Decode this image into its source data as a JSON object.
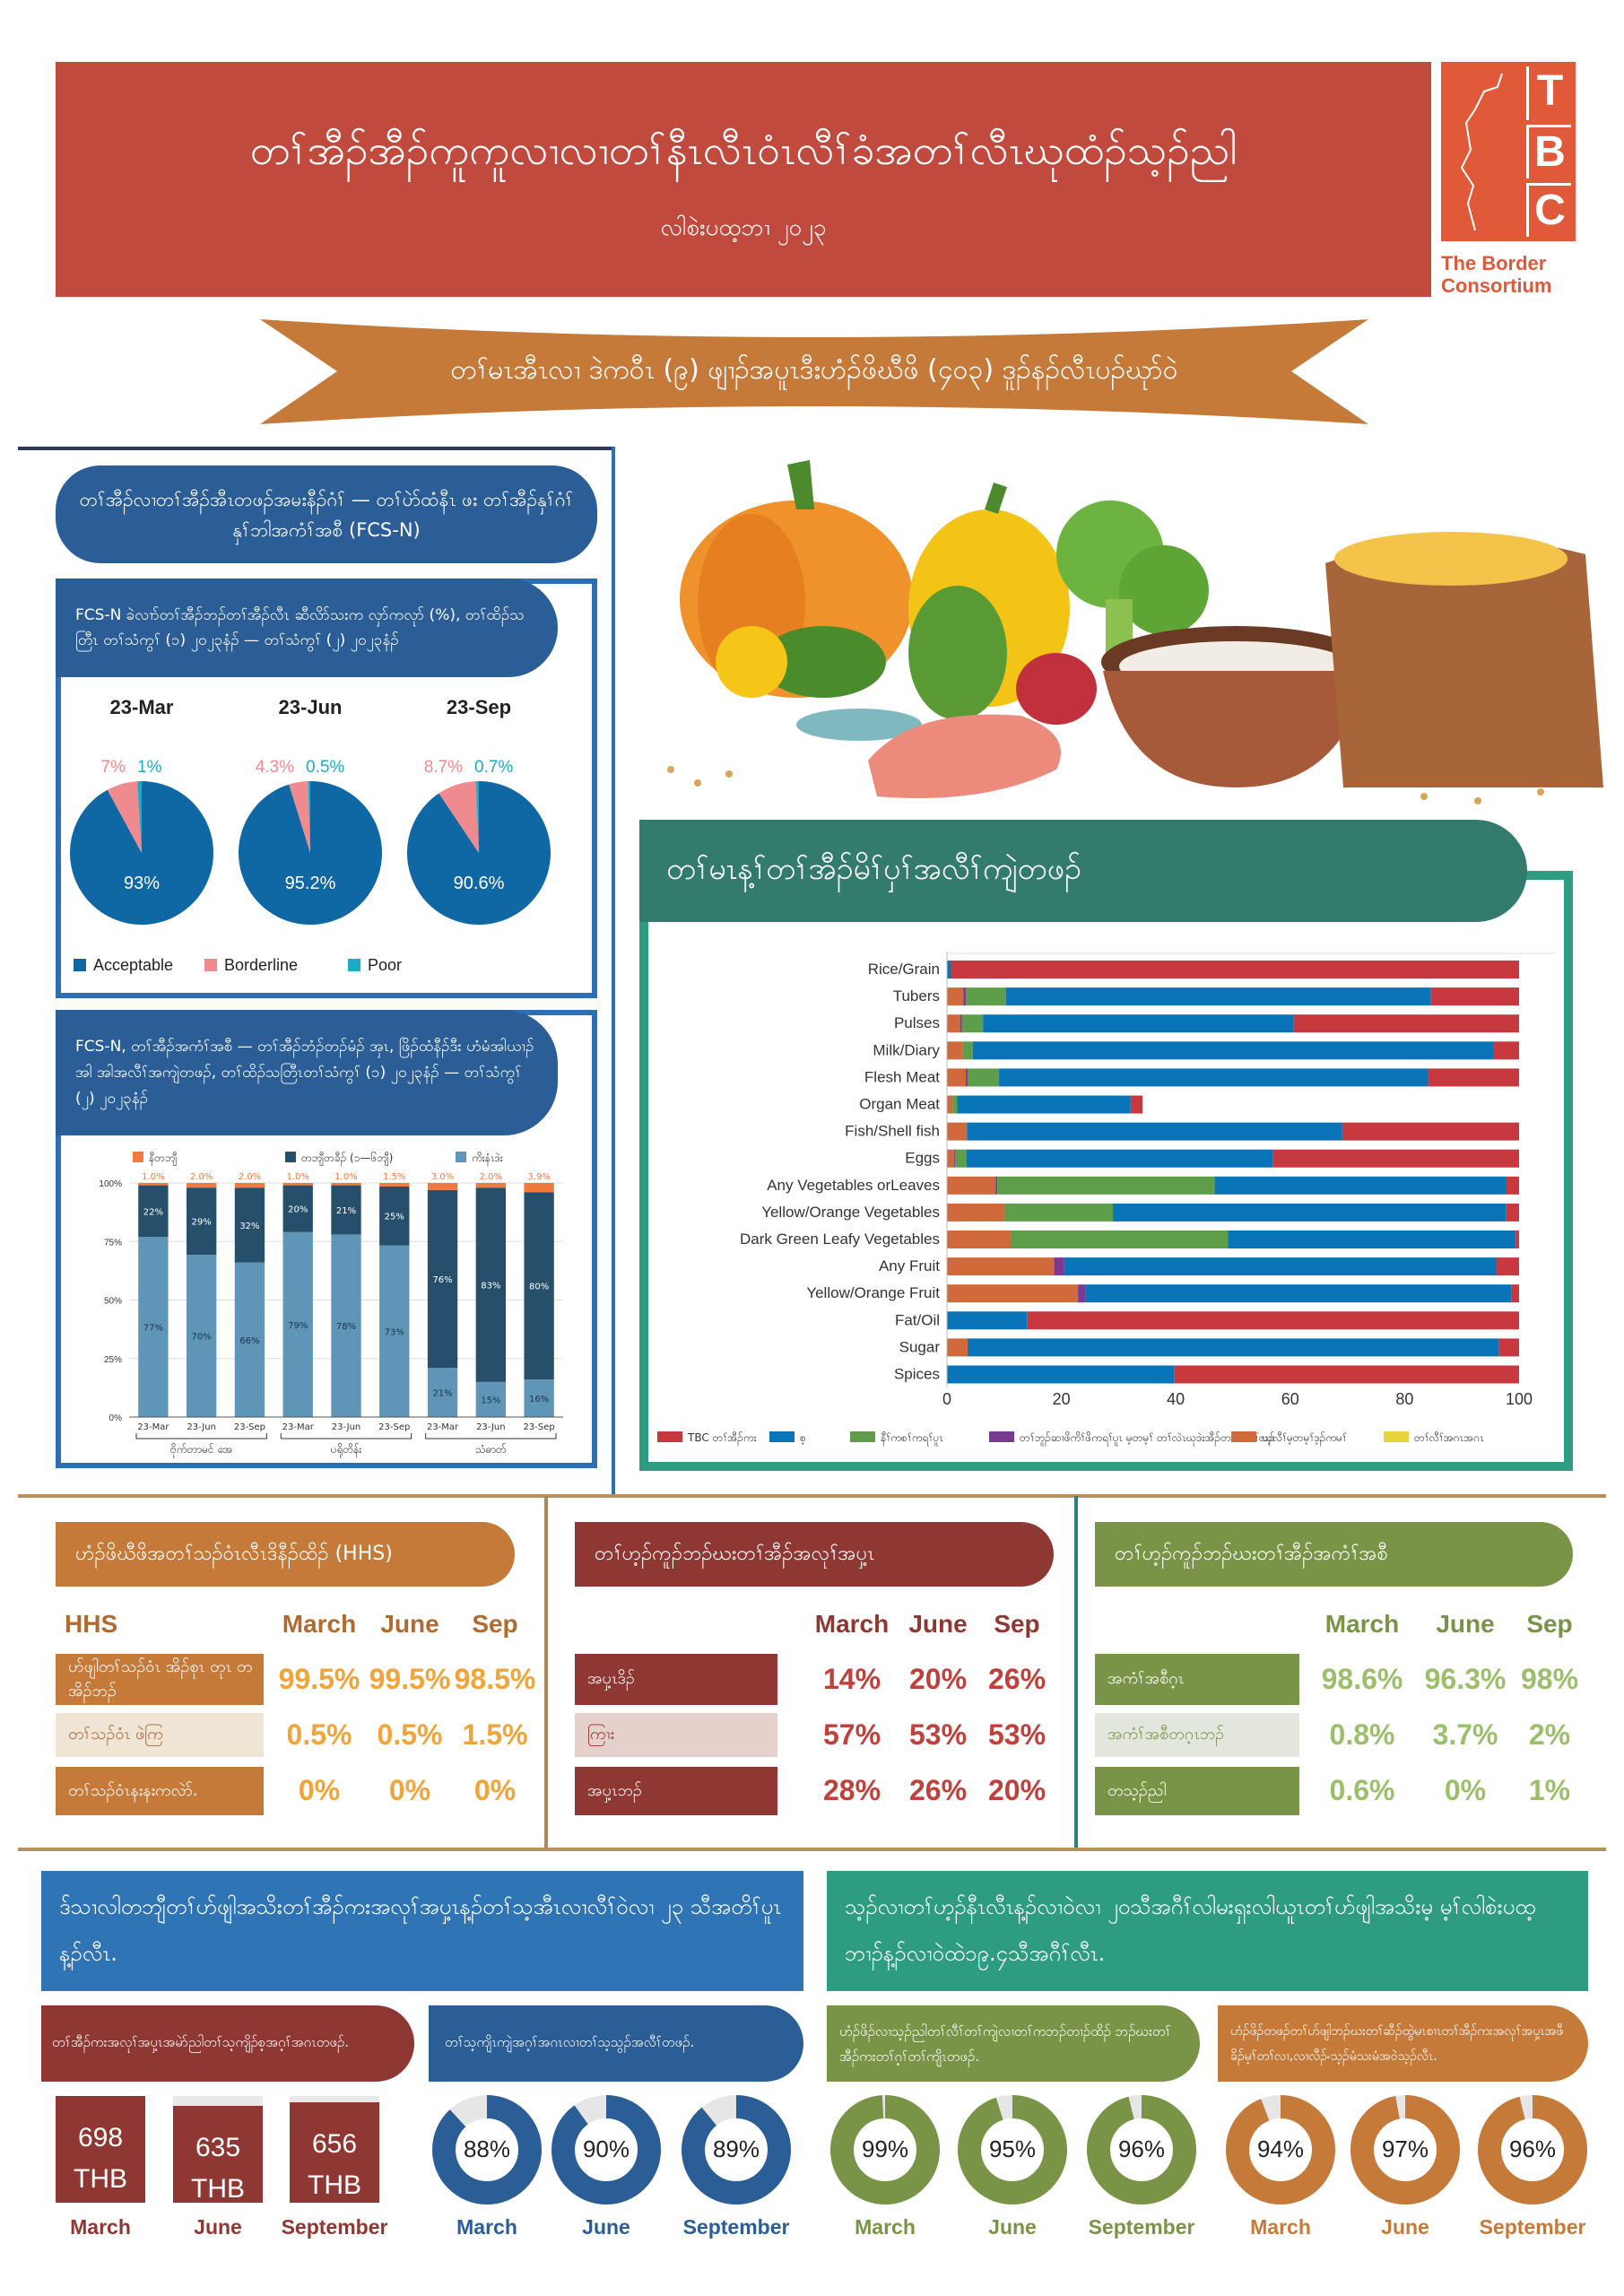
{
  "header": {
    "title": "တၢ်အီၣ်အီၣ်ကူကူလၢလၢတၢ်နီၤလီၤဝံၤလီၢ်ခံအတၢ်လီၤဃုထံၣ်သ့ၣ်ညါ",
    "subtitle": "လါစဲးပထ့ဘၢ ၂၀၂၃"
  },
  "logo": {
    "letters": [
      "T",
      "B",
      "C"
    ],
    "name_line1": "The Border",
    "name_line2": "Consortium"
  },
  "banner": {
    "text": "တၢ်မၤအီၤလၢ ဒဲကဝီၤ (၉) ဖျၢၣ်အပူၤဒီးဟံၣ်ဖိဃီဖိ (၄၀၃) ဒူၣ်နၣ်လီၤပၣ်ဃုာ်ဝဲ"
  },
  "colors": {
    "acceptable": "#0f67a3",
    "borderline": "#ef8a8f",
    "poor": "#1aadc8",
    "never": "#f07a3e",
    "sometimes": "#264f6b",
    "daily": "#5f95b6"
  },
  "fcs": {
    "title": "တၢ်အီၣ်လၢတၢ်အီၣ်အီၤတဖၣ်အမးနီၣ်ဂံၢ် — တၢ်ပဲာ်ထံနီၤ ဖး တၢ်အီၣ်နှၢ်ဂံၢ်နှၢ်ဘါအကံၢ်အစီ (FCS-N)",
    "pie_subtitle": "FCS-N ခဲလၢာ်တၢ်အီၣ်ဘၣ်တၢ်အီၣ်လီၤ ဆီလိာ်သးက လှာ်ကလုာ် (%), တၢ်ထိၣ်သတြီၤ တၢ်သံကွၢ် (၁) ၂၀၂၃နံၣ် — တၢ်သံကွၢ် (၂) ၂၀၂၃နံၣ်",
    "bar_subtitle": "FCS-N, တၢ်အီၣ်အကံၢ်အစီ — တၢ်အီၣ်ဘံၣ်တၣ်မံၣ် အှၤ, ဖြိၣ်ထံနီၣ်ဒီး ဟံမံအါယၢၣ် အါ အါအလီၢ်အကျဲတဖၣ်, တၢ်ထိၣ်သတြီၤတၢ်သံကွၢ် (၁) ၂၀၂၃နံၣ် — တၢ်သံကွၢ် (၂) ၂၀၂၃နံၣ်"
  },
  "chart_data": [
    {
      "type": "pie",
      "title": "23-Mar",
      "legend": [
        "Acceptable",
        "Borderline",
        "Poor"
      ],
      "values": [
        93,
        7,
        1
      ],
      "labels": [
        "93%",
        "7%",
        "1%"
      ]
    },
    {
      "type": "pie",
      "title": "23-Jun",
      "legend": [
        "Acceptable",
        "Borderline",
        "Poor"
      ],
      "values": [
        95.2,
        4.3,
        0.5
      ],
      "labels": [
        "95.2%",
        "4.3%",
        "0.5%"
      ]
    },
    {
      "type": "pie",
      "title": "23-Sep",
      "legend": [
        "Acceptable",
        "Borderline",
        "Poor"
      ],
      "values": [
        90.6,
        8.7,
        0.7
      ],
      "labels": [
        "90.6%",
        "8.7%",
        "0.7%"
      ]
    },
    {
      "type": "bar",
      "stacked": true,
      "categories": [
        "23-Mar",
        "23-Jun",
        "23-Sep",
        "23-Mar",
        "23-Jun",
        "23-Sep",
        "23-Mar",
        "23-Jun",
        "23-Sep"
      ],
      "groups": [
        "ဗိုက်တာမင် အေ",
        "ပရိုတိန်း",
        "သံဓာတ်"
      ],
      "yticks": [
        "0%",
        "25%",
        "50%",
        "75%",
        "100%"
      ],
      "ylim": [
        0,
        100
      ],
      "legend": "top",
      "series": [
        {
          "name": "ကိးနံၤဒဲး",
          "values": [
            77,
            70,
            66,
            79,
            78,
            73,
            21,
            15,
            16
          ],
          "labels": [
            "77%",
            "70%",
            "66%",
            "79%",
            "78%",
            "73%",
            "21%",
            "15%",
            "16%"
          ]
        },
        {
          "name": "တဘျီတခီၣ် (၁—၆ဘျီ)",
          "values": [
            22,
            29,
            32,
            20,
            21,
            25,
            76,
            83,
            80
          ],
          "labels": [
            "22%",
            "29%",
            "32%",
            "20%",
            "21%",
            "25%",
            "76%",
            "83%",
            "80%"
          ]
        },
        {
          "name": "နီတဘျီ",
          "values": [
            1,
            2,
            2,
            1,
            1,
            1.5,
            3,
            2,
            3.9
          ],
          "labels": [
            "1.0%",
            "2.0%",
            "2.0%",
            "1.0%",
            "1.0%",
            "1.5%",
            "3.0%",
            "2.0%",
            "3.9%"
          ]
        }
      ]
    },
    {
      "type": "bar",
      "orientation": "horizontal",
      "stacked": true,
      "title": "တၢ်မၤန့ၢ်တၢ်အီၣ်မိၢ်ပှၢ်အလီၢ်ကျဲတဖၣ်",
      "categories": [
        "Rice/Grain",
        "Tubers",
        "Pulses",
        "Milk/Diary",
        "Flesh Meat",
        "Organ Meat",
        "Fish/Shell fish",
        "Eggs",
        "Any Vegetables orLeaves",
        "Yellow/Orange Vegetables",
        "Dark Green Leafy Vegetables",
        "Any Fruit",
        "Yellow/Orange Fruit",
        "Fat/Oil",
        "Sugar",
        "Spices"
      ],
      "xlim": [
        0,
        100
      ],
      "xticks": [
        "0",
        "20",
        "40",
        "60",
        "80",
        "100"
      ],
      "legend": "bottom",
      "series": [
        {
          "name": "ဃ့လီၢ်မ့တမ့ၢ်ဒ့ၣ်ကမၢ်",
          "color": "#d06a3c",
          "values": [
            0,
            2.9,
            2.3,
            2.7,
            3.3,
            1,
            3.5,
            1.2,
            8.5,
            10.1,
            11.2,
            18.7,
            22.9,
            0,
            3.6,
            0
          ]
        },
        {
          "name": "တၢ်ဘူၣ်ဆၢဖိကိၢ်ဖိကရၢ်ပူၤ မ့တမ့ၢ် တၢ်လဲၤဃုဒဲးအီၣ်တၢ်ဒီးတၢ်လၣ်",
          "color": "#7a3a8f",
          "values": [
            0,
            0.4,
            0.3,
            0,
            0.3,
            0,
            0,
            0.2,
            0.3,
            0,
            0,
            1.8,
            1.3,
            0,
            0,
            0
          ]
        },
        {
          "name": "နီၢ်ကစၢ်ကရၢ်ပူၤ",
          "color": "#5e9e4b",
          "values": [
            0,
            7,
            3.7,
            1.8,
            5.5,
            0.8,
            0,
            2,
            38,
            18.9,
            37.9,
            0,
            0,
            0,
            0,
            0
          ]
        },
        {
          "name": "စ့",
          "color": "#0a74b8",
          "values": [
            0.7,
            74.3,
            54.3,
            91.1,
            75,
            30.3,
            65.6,
            53.6,
            51,
            68.7,
            50.3,
            75.5,
            74.5,
            14,
            92.9,
            39.7
          ]
        },
        {
          "name": "TBC တၢ်အီၣ်ကး",
          "color": "#c8383f",
          "values": [
            99.3,
            15.4,
            39.4,
            4.4,
            15.9,
            2.1,
            30.9,
            43,
            2.2,
            2.3,
            0.6,
            4,
            1.3,
            86,
            3.5,
            60.3
          ]
        },
        {
          "name": "တၢ်လီၢ်အဂၤအဂၤ",
          "color": "#e8d33b",
          "values": [
            0,
            0,
            0,
            0,
            0,
            0,
            0,
            0,
            0,
            0,
            0,
            0,
            0,
            0,
            0,
            0
          ]
        }
      ]
    }
  ],
  "tables": {
    "hhs": {
      "title": "ဟံၣ်ဖိဃီဖိအတၢ်သၣ်ဝံၤလီၤဒိနီၣ်ထိၣ် (HHS)",
      "corner": "HHS",
      "columns": [
        "March",
        "June",
        "Sep"
      ],
      "rows": [
        {
          "label": "ဟ်ဖျါတၢ်သၣ်ဝံၤ အိၣ်စုၤ တုၤ တအိၣ်ဘၣ်",
          "values": [
            "99.5%",
            "99.5%",
            "98.5%"
          ]
        },
        {
          "label": "တၢ်သၣ်ဝံၤ ဖဲကြ",
          "values": [
            "0.5%",
            "0.5%",
            "1.5%"
          ]
        },
        {
          "label": "တၢ်သၣ်ဝံၤနးနးကလဲာ်.",
          "values": [
            "0%",
            "0%",
            "0%"
          ]
        }
      ]
    },
    "price": {
      "title": "တၢ်ဟ့ၣ်ကူၣ်ဘၣ်ဃးတၢ်အီၣ်အလုၢ်အပှ့ၤ",
      "columns": [
        "March",
        "June",
        "Sep"
      ],
      "rows": [
        {
          "label": "အပှ့ၤဒိၣ်",
          "values": [
            "14%",
            "20%",
            "26%"
          ]
        },
        {
          "label": "ကြၢး",
          "values": [
            "57%",
            "53%",
            "53%"
          ]
        },
        {
          "label": "အပှ့ၤဘၣ်",
          "values": [
            "28%",
            "26%",
            "20%"
          ]
        }
      ]
    },
    "quality": {
      "title": "တၢ်ဟ့ၣ်ကူၣ်ဘၣ်ဃးတၢ်အီၣ်အကံၢ်အစီ",
      "columns": [
        "March",
        "June",
        "Sep"
      ],
      "rows": [
        {
          "label": "အကံၢ်အစီဂ့ၤ",
          "values": [
            "98.6%",
            "96.3%",
            "98%"
          ]
        },
        {
          "label": "အကံၢ်အစီတဂ့ၤဘၣ်",
          "values": [
            "0.8%",
            "3.7%",
            "2%"
          ]
        },
        {
          "label": "တသ့ၣ်ညါ",
          "values": [
            "0.6%",
            "0%",
            "1%"
          ]
        }
      ]
    }
  },
  "bottom": {
    "left": {
      "title": "ဒ်သၢလါတဘျီတၢ်ဟ်ဖျါအသိးတၢ်အီၣ်ကးအလုၢ်အပှ့ၤန့ၣ်တၢ်သ့အီၤလၢလီၢ်ဝဲလၢ ၂၃ သီအတိၢ်ပူၤန့ၣ်လီၤ.",
      "cost": {
        "label": "တၢ်အီၣ်ကးအလုၢ်အပှ့ၤအမဲာ်ညါတၢ်သ့ကျိၣ်စ့အဂ့ၢ်အဂၤတဖၣ်.",
        "items": [
          {
            "amount": "698",
            "unit": "THB",
            "value": 698,
            "month": "March"
          },
          {
            "amount": "635",
            "unit": "THB",
            "value": 635,
            "month": "June"
          },
          {
            "amount": "656",
            "unit": "THB",
            "value": 656,
            "month": "September"
          }
        ]
      },
      "access": {
        "label": "တၢ်သ့ကျိၤကျဲအဂ့ၢ်အဂၤလၢတၢ်သ့သွၣ်အလီၢ်တဖၣ်.",
        "color": "#2b5d96",
        "items": [
          {
            "pct": "88%",
            "value": 88,
            "month": "March"
          },
          {
            "pct": "90%",
            "value": 90,
            "month": "June"
          },
          {
            "pct": "89%",
            "value": 89,
            "month": "September"
          }
        ]
      }
    },
    "right": {
      "title": "သ့ၣ်လၢတၢ်ဟ့ၣ်နီၤလီၤန့ၣ်လၢဝဲလၢ ၂၀သီအဂီၢ်လါမးရှးလါယူၤတၢ်ဟ်ဖျါအသိးမ့ မ့ၢ်လါစဲးပထ့ဘၢၣ်န့ၣ်လၢဝဲထဲ၁၉.၄သီအဂီၢ်လီၤ.",
      "satisfied": {
        "label": "ဟံၣ်ဖိၣ်လၢသ့ၣ်ညါတၢ်လီၢ်တၢ်ကျဲလၢတၢ်ကဘၣ်တၢၣ်ထိၣ် ဘၣ်ဃးတၢ်အီၣ်ကးတၢ်ဂ့ၢ်တၢ်ကျိၤတဖၣ်.",
        "color": "#7a9447",
        "items": [
          {
            "pct": "99%",
            "value": 99,
            "month": "March"
          },
          {
            "pct": "95%",
            "value": 95,
            "month": "June"
          },
          {
            "pct": "96%",
            "value": 96,
            "month": "September"
          }
        ]
      },
      "lasted": {
        "label": "ဟံၣ်ဖိၣ်တဖၣ်တၢ်ဟ်ဖျါဘၣ်ဃးတၢ်ဆီၣ်ထွဲမၤစၢၤတၢ်အီၣ်ကးအလုၢ်အပှ့ၤအဖီခိၣ်မ့ၢ်တၢ်လၢ,လၢလီၣ်ႋသ့ၣ်မံသးမံအဝဲသ့ၣ်လီၤ.",
        "color": "#c57a39",
        "items": [
          {
            "pct": "94%",
            "value": 94,
            "month": "March"
          },
          {
            "pct": "97%",
            "value": 97,
            "month": "June"
          },
          {
            "pct": "96%",
            "value": 96,
            "month": "September"
          }
        ]
      }
    }
  }
}
